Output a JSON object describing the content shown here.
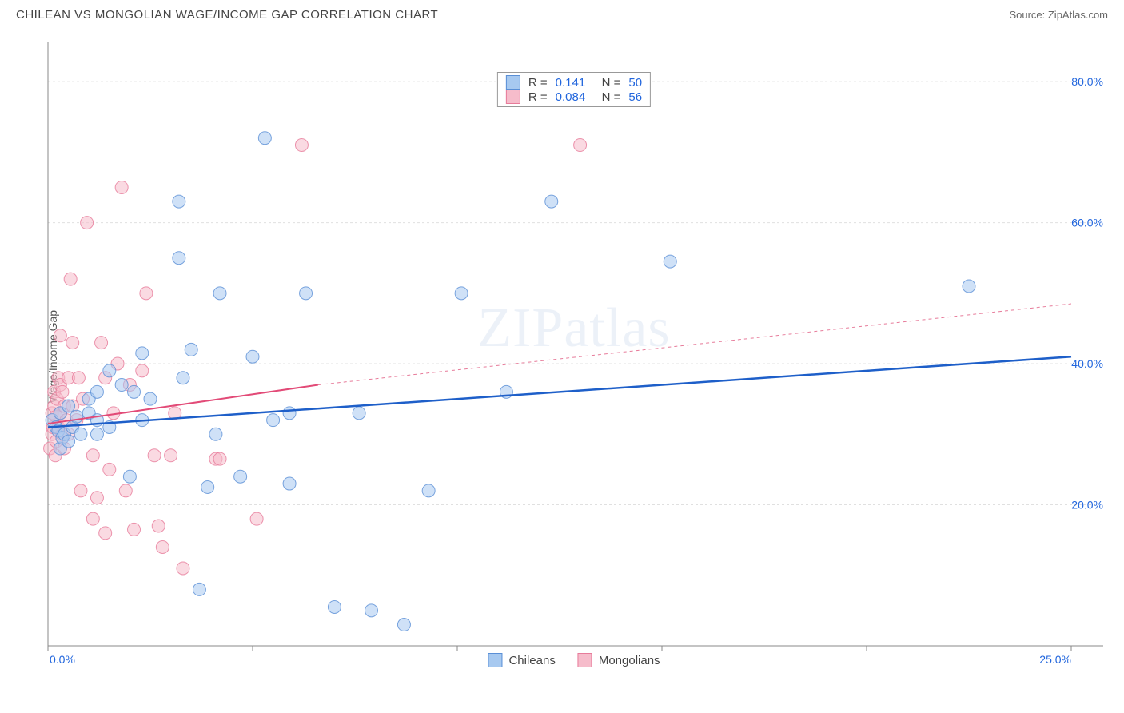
{
  "title": "CHILEAN VS MONGOLIAN WAGE/INCOME GAP CORRELATION CHART",
  "source": "Source: ZipAtlas.com",
  "watermark": "ZIPatlas",
  "chart": {
    "type": "scatter",
    "y_label": "Wage/Income Gap",
    "x_range": [
      0,
      25
    ],
    "y_range": [
      0,
      85
    ],
    "x_ticks": [
      0,
      5,
      10,
      15,
      20,
      25
    ],
    "x_tick_labels": [
      "0.0%",
      "",
      "",
      "",
      "",
      "25.0%"
    ],
    "y_ticks": [
      20,
      40,
      60,
      80
    ],
    "y_tick_labels": [
      "20.0%",
      "40.0%",
      "60.0%",
      "80.0%"
    ],
    "grid_color": "#e0e0e0",
    "axis_color": "#888",
    "tick_label_color": "#2266dd",
    "background_color": "#ffffff",
    "marker_radius": 8,
    "marker_opacity": 0.55,
    "series": [
      {
        "name": "Chileans",
        "color_fill": "#a7c9f0",
        "color_stroke": "#5a8fd6",
        "R": "0.141",
        "N": "50",
        "trend": {
          "x1": 0,
          "y1": 31,
          "x2": 25,
          "y2": 41,
          "color": "#1e5fc9",
          "width": 2.5,
          "dash": "none"
        },
        "points": [
          [
            0.1,
            32
          ],
          [
            0.2,
            31
          ],
          [
            0.25,
            30.5
          ],
          [
            0.3,
            33
          ],
          [
            0.3,
            28
          ],
          [
            0.35,
            29.5
          ],
          [
            0.4,
            30
          ],
          [
            0.5,
            29
          ],
          [
            0.5,
            34
          ],
          [
            0.6,
            31
          ],
          [
            0.7,
            32.5
          ],
          [
            0.8,
            30
          ],
          [
            1.0,
            33
          ],
          [
            1.0,
            35
          ],
          [
            1.2,
            36
          ],
          [
            1.2,
            32
          ],
          [
            1.2,
            30
          ],
          [
            1.5,
            31
          ],
          [
            1.5,
            39
          ],
          [
            1.8,
            37
          ],
          [
            2.0,
            24
          ],
          [
            2.1,
            36
          ],
          [
            2.3,
            32
          ],
          [
            2.3,
            41.5
          ],
          [
            2.5,
            35
          ],
          [
            3.2,
            55
          ],
          [
            3.2,
            63
          ],
          [
            3.3,
            38
          ],
          [
            3.5,
            42
          ],
          [
            3.7,
            8
          ],
          [
            3.9,
            22.5
          ],
          [
            4.1,
            30
          ],
          [
            4.2,
            50
          ],
          [
            4.7,
            24
          ],
          [
            5.0,
            41
          ],
          [
            5.3,
            72
          ],
          [
            5.5,
            32
          ],
          [
            5.9,
            33
          ],
          [
            5.9,
            23
          ],
          [
            6.3,
            50
          ],
          [
            7.0,
            5.5
          ],
          [
            7.6,
            33
          ],
          [
            7.9,
            5
          ],
          [
            8.7,
            3
          ],
          [
            9.3,
            22
          ],
          [
            10.1,
            50
          ],
          [
            11.2,
            36
          ],
          [
            12.3,
            63
          ],
          [
            15.2,
            54.5
          ],
          [
            22.5,
            51
          ]
        ]
      },
      {
        "name": "Mongolians",
        "color_fill": "#f6bccb",
        "color_stroke": "#e77b9a",
        "R": "0.084",
        "N": "56",
        "trend": {
          "x1": 0,
          "y1": 31.5,
          "x2": 6.6,
          "y2": 37,
          "color": "#e24a77",
          "width": 2,
          "dash": "none"
        },
        "trend_ext": {
          "x1": 6.6,
          "y1": 37,
          "x2": 25,
          "y2": 48.5,
          "color": "#e77b9a",
          "width": 1,
          "dash": "4,4"
        },
        "points": [
          [
            0.05,
            28
          ],
          [
            0.1,
            33
          ],
          [
            0.1,
            30
          ],
          [
            0.12,
            31
          ],
          [
            0.15,
            34
          ],
          [
            0.15,
            36
          ],
          [
            0.18,
            27
          ],
          [
            0.2,
            29
          ],
          [
            0.2,
            32.5
          ],
          [
            0.22,
            35
          ],
          [
            0.25,
            38
          ],
          [
            0.25,
            31
          ],
          [
            0.3,
            33
          ],
          [
            0.3,
            37
          ],
          [
            0.3,
            44
          ],
          [
            0.35,
            30
          ],
          [
            0.35,
            36
          ],
          [
            0.4,
            28
          ],
          [
            0.4,
            34
          ],
          [
            0.45,
            32
          ],
          [
            0.5,
            38
          ],
          [
            0.5,
            30
          ],
          [
            0.55,
            52
          ],
          [
            0.6,
            34
          ],
          [
            0.6,
            43
          ],
          [
            0.7,
            32
          ],
          [
            0.75,
            38
          ],
          [
            0.8,
            22
          ],
          [
            0.85,
            35
          ],
          [
            0.95,
            60
          ],
          [
            1.1,
            18
          ],
          [
            1.1,
            27
          ],
          [
            1.2,
            21
          ],
          [
            1.3,
            43
          ],
          [
            1.4,
            16
          ],
          [
            1.4,
            38
          ],
          [
            1.5,
            25
          ],
          [
            1.6,
            33
          ],
          [
            1.7,
            40
          ],
          [
            1.8,
            65
          ],
          [
            1.9,
            22
          ],
          [
            2.0,
            37
          ],
          [
            2.1,
            16.5
          ],
          [
            2.3,
            39
          ],
          [
            2.4,
            50
          ],
          [
            2.6,
            27
          ],
          [
            2.7,
            17
          ],
          [
            2.8,
            14
          ],
          [
            3.0,
            27
          ],
          [
            3.1,
            33
          ],
          [
            3.3,
            11
          ],
          [
            4.1,
            26.5
          ],
          [
            4.2,
            26.5
          ],
          [
            5.1,
            18
          ],
          [
            6.2,
            71
          ],
          [
            13.0,
            71
          ]
        ]
      }
    ]
  },
  "legend_top": [
    {
      "swatch_fill": "#a7c9f0",
      "swatch_stroke": "#5a8fd6",
      "R": "0.141",
      "N": "50"
    },
    {
      "swatch_fill": "#f6bccb",
      "swatch_stroke": "#e77b9a",
      "R": "0.084",
      "N": "56"
    }
  ],
  "legend_bottom": [
    {
      "swatch_fill": "#a7c9f0",
      "swatch_stroke": "#5a8fd6",
      "label": "Chileans"
    },
    {
      "swatch_fill": "#f6bccb",
      "swatch_stroke": "#e77b9a",
      "label": "Mongolians"
    }
  ]
}
